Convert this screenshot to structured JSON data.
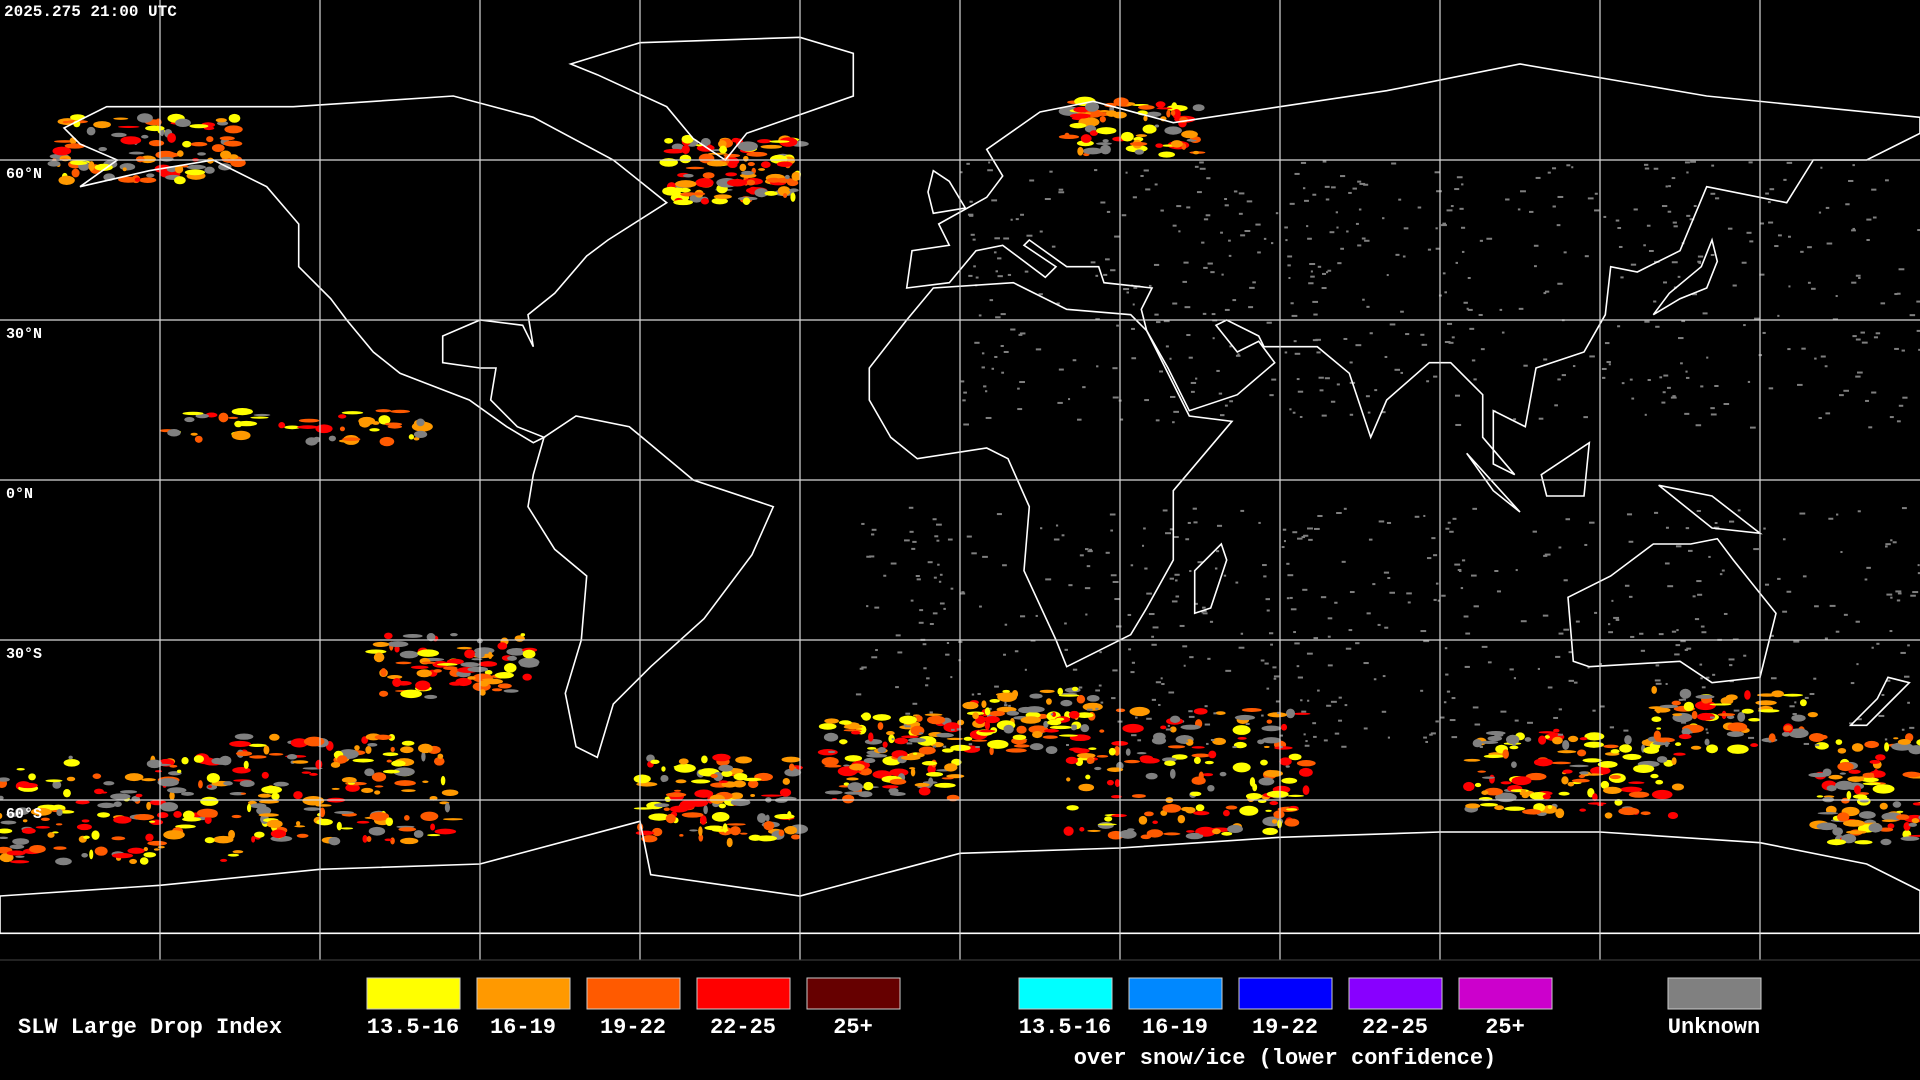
{
  "header": {
    "timestamp": "2025.275 21:00 UTC"
  },
  "map": {
    "grid_labels": [
      "60°N",
      "30°N",
      "0°N",
      "30°S",
      "60°S"
    ]
  },
  "legend": {
    "title": "SLW Large Drop Index",
    "groups": [
      {
        "entries": [
          {
            "label": "13.5-16",
            "color": "#ffff00"
          },
          {
            "label": "16-19",
            "color": "#ff9900"
          },
          {
            "label": "19-22",
            "color": "#ff5a00"
          },
          {
            "label": "22-25",
            "color": "#ff0000"
          },
          {
            "label": "25+",
            "color": "#660000"
          }
        ]
      },
      {
        "entries": [
          {
            "label": "13.5-16",
            "color": "#00ffff"
          },
          {
            "label": "16-19",
            "color": "#0088ff"
          },
          {
            "label": "19-22",
            "color": "#0000ff"
          },
          {
            "label": "22-25",
            "color": "#8800ff"
          },
          {
            "label": "25+",
            "color": "#cc00cc"
          }
        ],
        "note": "over snow/ice (lower confidence)"
      },
      {
        "entries": [
          {
            "label": "Unknown",
            "color": "#808080"
          }
        ]
      }
    ]
  }
}
